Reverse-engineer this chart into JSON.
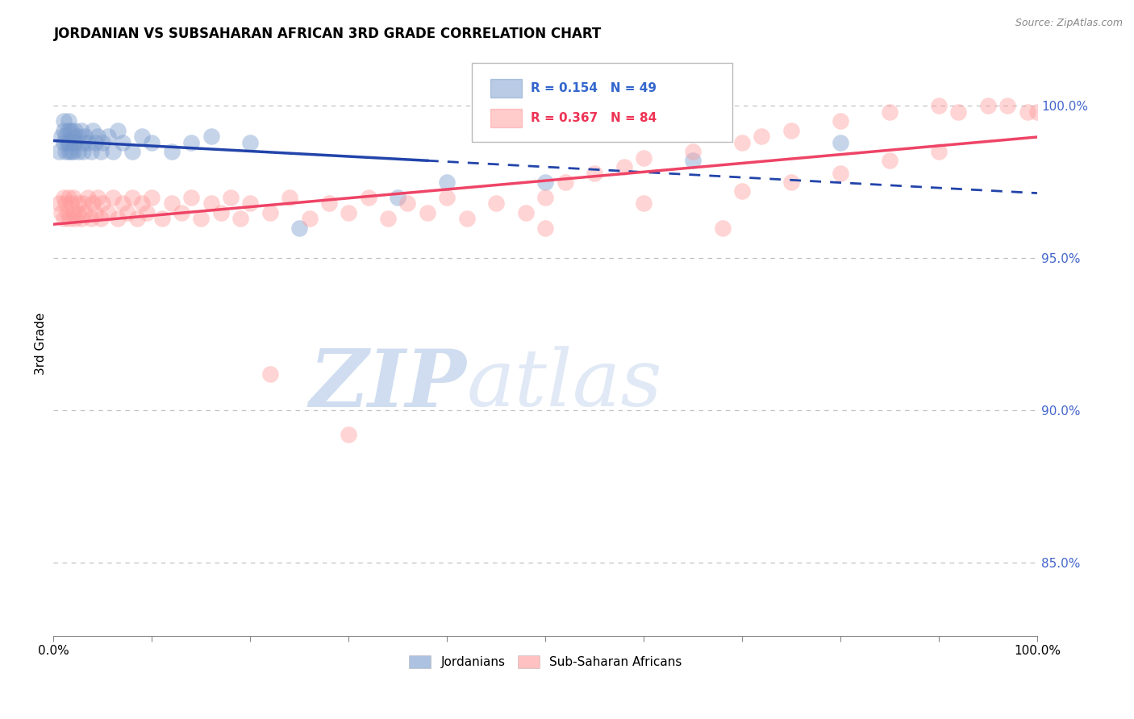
{
  "title": "JORDANIAN VS SUBSAHARAN AFRICAN 3RD GRADE CORRELATION CHART",
  "source": "Source: ZipAtlas.com",
  "ylabel": "3rd Grade",
  "right_yticks": [
    0.85,
    0.9,
    0.95,
    1.0
  ],
  "right_yticklabels": [
    "85.0%",
    "90.0%",
    "95.0%",
    "100.0%"
  ],
  "xlim": [
    0.0,
    1.0
  ],
  "ylim": [
    0.826,
    1.018
  ],
  "blue_R": 0.154,
  "blue_N": 49,
  "pink_R": 0.367,
  "pink_N": 84,
  "blue_color": "#7799CC",
  "pink_color": "#FF9999",
  "blue_line_color": "#2244AA",
  "pink_line_color": "#EE4466",
  "watermark_zip": "ZIP",
  "watermark_atlas": "atlas",
  "legend_label_blue": "Jordanians",
  "legend_label_pink": "Sub-Saharan Africans",
  "blue_scatter_x": [
    0.005,
    0.008,
    0.01,
    0.01,
    0.01,
    0.012,
    0.012,
    0.014,
    0.015,
    0.015,
    0.015,
    0.016,
    0.018,
    0.018,
    0.02,
    0.02,
    0.02,
    0.022,
    0.022,
    0.025,
    0.025,
    0.028,
    0.03,
    0.03,
    0.032,
    0.035,
    0.038,
    0.04,
    0.042,
    0.045,
    0.048,
    0.05,
    0.055,
    0.06,
    0.065,
    0.07,
    0.08,
    0.09,
    0.1,
    0.12,
    0.14,
    0.16,
    0.2,
    0.25,
    0.35,
    0.4,
    0.5,
    0.65,
    0.8
  ],
  "blue_scatter_y": [
    0.985,
    0.99,
    0.988,
    0.992,
    0.995,
    0.985,
    0.99,
    0.988,
    0.985,
    0.992,
    0.995,
    0.988,
    0.992,
    0.985,
    0.99,
    0.988,
    0.985,
    0.992,
    0.988,
    0.99,
    0.985,
    0.992,
    0.988,
    0.985,
    0.99,
    0.988,
    0.985,
    0.992,
    0.988,
    0.99,
    0.985,
    0.988,
    0.99,
    0.985,
    0.992,
    0.988,
    0.985,
    0.99,
    0.988,
    0.985,
    0.988,
    0.99,
    0.988,
    0.96,
    0.97,
    0.975,
    0.975,
    0.982,
    0.988
  ],
  "pink_scatter_x": [
    0.005,
    0.008,
    0.01,
    0.01,
    0.012,
    0.014,
    0.015,
    0.016,
    0.018,
    0.02,
    0.02,
    0.022,
    0.025,
    0.025,
    0.028,
    0.03,
    0.032,
    0.035,
    0.038,
    0.04,
    0.042,
    0.045,
    0.048,
    0.05,
    0.055,
    0.06,
    0.065,
    0.07,
    0.075,
    0.08,
    0.085,
    0.09,
    0.095,
    0.1,
    0.11,
    0.12,
    0.13,
    0.14,
    0.15,
    0.16,
    0.17,
    0.18,
    0.19,
    0.2,
    0.22,
    0.24,
    0.26,
    0.28,
    0.3,
    0.32,
    0.34,
    0.36,
    0.38,
    0.4,
    0.42,
    0.45,
    0.48,
    0.5,
    0.52,
    0.55,
    0.58,
    0.6,
    0.65,
    0.7,
    0.72,
    0.75,
    0.8,
    0.85,
    0.9,
    0.92,
    0.95,
    0.97,
    0.99,
    1.0,
    0.68,
    0.22,
    0.3,
    0.5,
    0.6,
    0.7,
    0.75,
    0.8,
    0.85,
    0.9
  ],
  "pink_scatter_y": [
    0.968,
    0.965,
    0.97,
    0.963,
    0.968,
    0.965,
    0.97,
    0.963,
    0.968,
    0.965,
    0.97,
    0.963,
    0.968,
    0.965,
    0.963,
    0.968,
    0.965,
    0.97,
    0.963,
    0.968,
    0.965,
    0.97,
    0.963,
    0.968,
    0.965,
    0.97,
    0.963,
    0.968,
    0.965,
    0.97,
    0.963,
    0.968,
    0.965,
    0.97,
    0.963,
    0.968,
    0.965,
    0.97,
    0.963,
    0.968,
    0.965,
    0.97,
    0.963,
    0.968,
    0.965,
    0.97,
    0.963,
    0.968,
    0.965,
    0.97,
    0.963,
    0.968,
    0.965,
    0.97,
    0.963,
    0.968,
    0.965,
    0.97,
    0.975,
    0.978,
    0.98,
    0.983,
    0.985,
    0.988,
    0.99,
    0.992,
    0.995,
    0.998,
    1.0,
    0.998,
    1.0,
    1.0,
    0.998,
    0.998,
    0.96,
    0.912,
    0.892,
    0.96,
    0.968,
    0.972,
    0.975,
    0.978,
    0.982,
    0.985
  ]
}
